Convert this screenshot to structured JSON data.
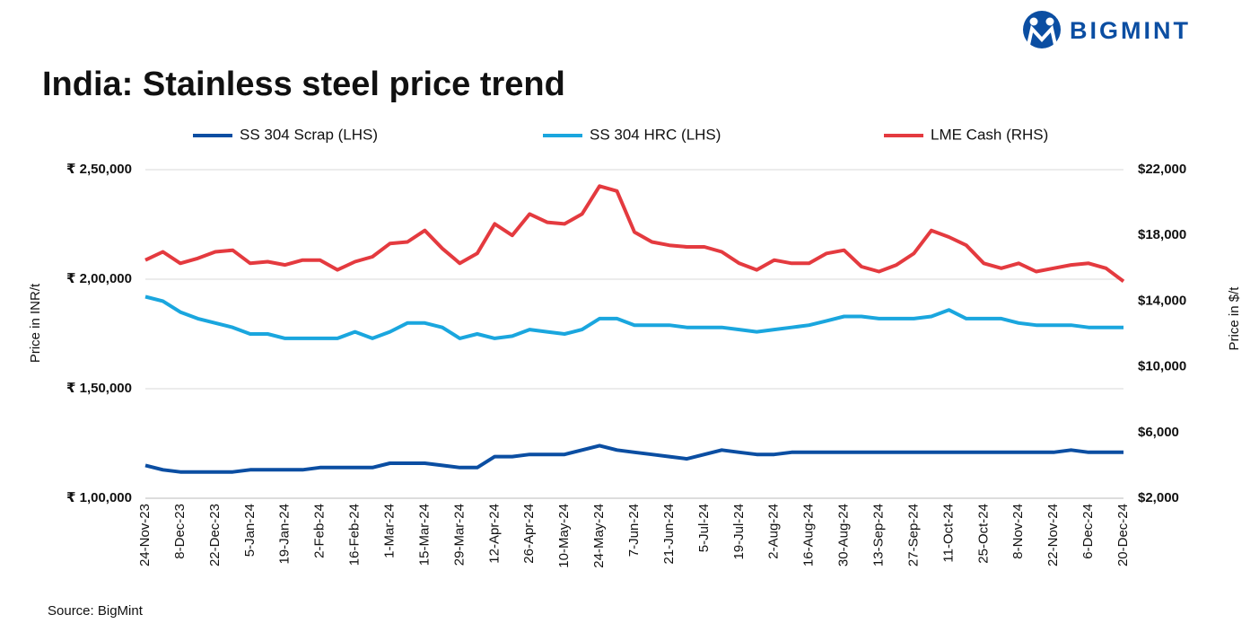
{
  "brand": "BIGMINT",
  "source": "Source: BigMint",
  "chart_data": {
    "type": "line",
    "title": "India: Stainless steel price trend",
    "y_label": "Price in INR/t",
    "y2_label": "Price in $/t",
    "categories": [
      "24-Nov-23",
      null,
      "8-Dec-23",
      null,
      "22-Dec-23",
      null,
      "5-Jan-24",
      null,
      "19-Jan-24",
      null,
      "2-Feb-24",
      null,
      "16-Feb-24",
      null,
      "1-Mar-24",
      null,
      "15-Mar-24",
      null,
      "29-Mar-24",
      null,
      "12-Apr-24",
      null,
      "26-Apr-24",
      null,
      "10-May-24",
      null,
      "24-May-24",
      null,
      "7-Jun-24",
      null,
      "21-Jun-24",
      null,
      "5-Jul-24",
      null,
      "19-Jul-24",
      null,
      "2-Aug-24",
      null,
      "16-Aug-24",
      null,
      "30-Aug-24",
      null,
      "13-Sep-24",
      null,
      "27-Sep-24",
      null,
      "11-Oct-24",
      null,
      "25-Oct-24",
      null,
      "8-Nov-24",
      null,
      "22-Nov-24",
      null,
      "6-Dec-24",
      null,
      "20-Dec-24"
    ],
    "ylim": [
      100000,
      250000
    ],
    "yticks": [
      {
        "value": 100000,
        "label": "₹ 1,00,000"
      },
      {
        "value": 150000,
        "label": "₹ 1,50,000"
      },
      {
        "value": 200000,
        "label": "₹ 2,00,000"
      },
      {
        "value": 250000,
        "label": "₹ 2,50,000"
      }
    ],
    "y2lim": [
      2000,
      22000
    ],
    "y2ticks": [
      {
        "value": 2000,
        "label": "$2,000"
      },
      {
        "value": 6000,
        "label": "$6,000"
      },
      {
        "value": 10000,
        "label": "$10,000"
      },
      {
        "value": 14000,
        "label": "$14,000"
      },
      {
        "value": 18000,
        "label": "$18,000"
      },
      {
        "value": 22000,
        "label": "$22,000"
      }
    ],
    "grid": true,
    "series": [
      {
        "name": "SS 304 Scrap (LHS)",
        "color": "#0b4ea2",
        "values": [
          115000,
          113000,
          112000,
          112000,
          112000,
          112000,
          113000,
          113000,
          113000,
          113000,
          114000,
          114000,
          114000,
          114000,
          116000,
          116000,
          116000,
          115000,
          114000,
          114000,
          119000,
          119000,
          120000,
          120000,
          120000,
          122000,
          124000,
          122000,
          121000,
          120000,
          119000,
          118000,
          120000,
          122000,
          121000,
          120000,
          120000,
          121000,
          121000,
          121000,
          121000,
          121000,
          121000,
          121000,
          121000,
          121000,
          121000,
          121000,
          121000,
          121000,
          121000,
          121000,
          121000,
          122000,
          121000,
          121000,
          121000
        ]
      },
      {
        "name": "SS 304 HRC (LHS)",
        "color": "#1aa6de",
        "values": [
          192000,
          190000,
          185000,
          182000,
          180000,
          178000,
          175000,
          175000,
          173000,
          173000,
          173000,
          173000,
          176000,
          173000,
          176000,
          180000,
          180000,
          178000,
          173000,
          175000,
          173000,
          174000,
          177000,
          176000,
          175000,
          177000,
          182000,
          182000,
          179000,
          179000,
          179000,
          178000,
          178000,
          178000,
          177000,
          176000,
          177000,
          178000,
          179000,
          181000,
          183000,
          183000,
          182000,
          182000,
          182000,
          183000,
          186000,
          182000,
          182000,
          182000,
          180000,
          179000,
          179000,
          179000,
          178000,
          178000,
          178000
        ]
      },
      {
        "name": "LME Cash (RHS)",
        "color": "#e43a3f",
        "axis": "y2",
        "values": [
          16500,
          17000,
          16300,
          16600,
          17000,
          17100,
          16300,
          16400,
          16200,
          16500,
          16500,
          15900,
          16400,
          16700,
          17500,
          17600,
          18300,
          17200,
          16300,
          16900,
          18700,
          18000,
          19300,
          18800,
          18700,
          19300,
          21000,
          20700,
          18200,
          17600,
          17400,
          17300,
          17300,
          17000,
          16300,
          15900,
          16500,
          16300,
          16300,
          16900,
          17100,
          16100,
          15800,
          16200,
          16900,
          18300,
          17900,
          17400,
          16300,
          16000,
          16300,
          15800,
          16000,
          16200,
          16300,
          16000,
          15200
        ]
      }
    ]
  }
}
